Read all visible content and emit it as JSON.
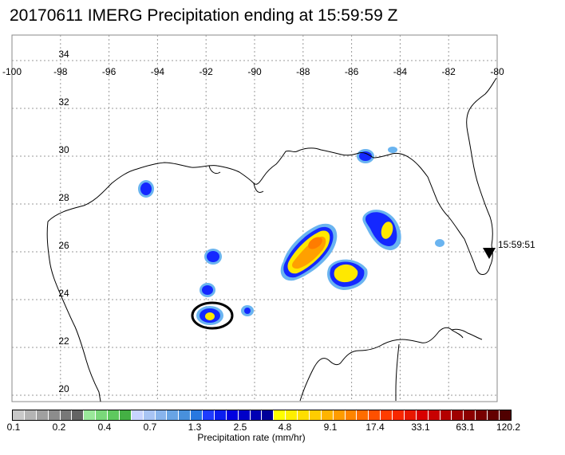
{
  "title": "20170611 IMERG Precipitation ending at 15:59:59 Z",
  "lon_ticks": [
    "-100",
    "-98",
    "-96",
    "-94",
    "-92",
    "-90",
    "-88",
    "-86",
    "-84",
    "-82",
    "-80"
  ],
  "lat_ticks": [
    "20",
    "22",
    "24",
    "26",
    "28",
    "30",
    "32",
    "34"
  ],
  "swath_time": "15:59:51",
  "colorbar": {
    "title": "Precipitation rate (mm/hr)",
    "labels": [
      "0.1",
      "0.2",
      "0.4",
      "0.7",
      "1.3",
      "2.5",
      "4.8",
      "9.1",
      "17.4",
      "33.1",
      "63.1",
      "120.2"
    ],
    "colors": [
      "#c8c8c8",
      "#b4b4b4",
      "#a0a0a0",
      "#8c8c8c",
      "#787878",
      "#646464",
      "#9ae89a",
      "#7ad87a",
      "#5ec85e",
      "#44b044",
      "#c8d4ff",
      "#a8c4f4",
      "#88b4ec",
      "#68a4e4",
      "#4890dc",
      "#2878e0",
      "#1e3cff",
      "#0a1ef0",
      "#0000e0",
      "#0000c8",
      "#0000b4",
      "#00009a",
      "#ffff00",
      "#ffef00",
      "#ffde00",
      "#ffcc00",
      "#ffb400",
      "#ff9c00",
      "#ff8400",
      "#ff6c00",
      "#ff5000",
      "#ff3c00",
      "#f82800",
      "#e81800",
      "#d80000",
      "#c80000",
      "#b40000",
      "#a00000",
      "#8c0000",
      "#780000",
      "#640000",
      "#500000"
    ]
  }
}
